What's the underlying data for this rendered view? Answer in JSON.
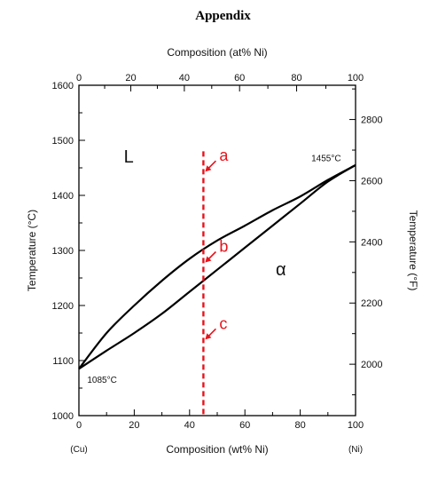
{
  "page": {
    "title": "Appendix"
  },
  "chart_data": {
    "type": "line",
    "title": "",
    "xlabel_bottom": "Composition (wt% Ni)",
    "xlabel_top": "Composition (at% Ni)",
    "ylabel_left": "Temperature (°C)",
    "ylabel_right": "Temperature (°F)",
    "xlim": [
      0,
      100
    ],
    "ylim": [
      1000,
      1600
    ],
    "x_ticks_bottom": [
      0,
      20,
      40,
      60,
      80,
      100
    ],
    "x_ticks_top": [
      0,
      20,
      40,
      60,
      80,
      100
    ],
    "y_ticks_left": [
      1000,
      1100,
      1200,
      1300,
      1400,
      1500,
      1600
    ],
    "y_ticks_right": [
      2000,
      2200,
      2400,
      2600,
      2800
    ],
    "end_labels": {
      "left": "(Cu)",
      "right": "(Ni)"
    },
    "series": [
      {
        "key": "liquidus",
        "x": [
          0,
          10,
          20,
          30,
          40,
          50,
          60,
          70,
          80,
          90,
          100
        ],
        "y": [
          1085,
          1150,
          1200,
          1245,
          1285,
          1318,
          1345,
          1373,
          1398,
          1428,
          1455
        ]
      },
      {
        "key": "solidus",
        "x": [
          0,
          10,
          20,
          30,
          40,
          50,
          60,
          70,
          80,
          90,
          100
        ],
        "y": [
          1085,
          1118,
          1150,
          1185,
          1225,
          1265,
          1305,
          1345,
          1385,
          1425,
          1455
        ]
      }
    ],
    "phase_labels": [
      {
        "text": "L",
        "x": 18,
        "y": 1460
      },
      {
        "text": "α",
        "x": 73,
        "y": 1255
      }
    ],
    "point_labels": [
      {
        "text": "1455°C",
        "x": 84,
        "y": 1462
      },
      {
        "text": "1085°C",
        "x": 3,
        "y": 1060
      }
    ],
    "composition_line": {
      "x": 45,
      "y_from": 1000,
      "y_to": 1480,
      "color": "#e8121b"
    },
    "markers": [
      {
        "label": "a",
        "x": 45,
        "y": 1440,
        "color": "#e8121b"
      },
      {
        "label": "b",
        "x": 45,
        "y": 1275,
        "color": "#e8121b"
      },
      {
        "label": "c",
        "x": 45,
        "y": 1135,
        "color": "#e8121b"
      }
    ],
    "grid": false,
    "legend": "none"
  }
}
